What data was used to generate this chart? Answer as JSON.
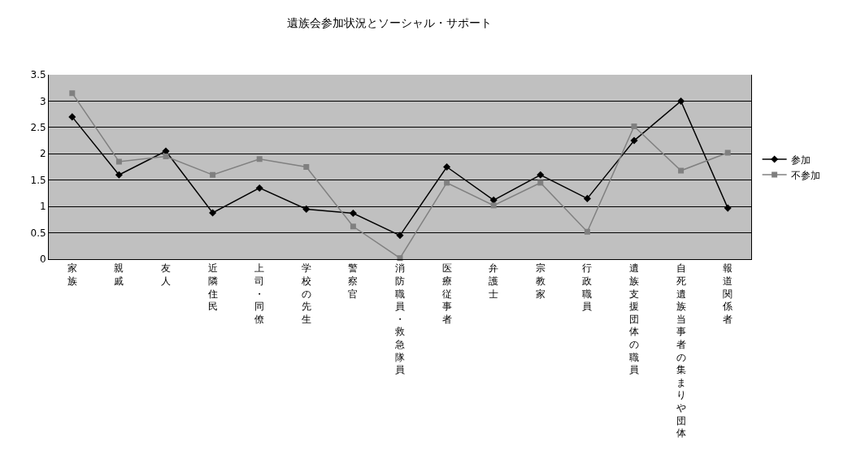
{
  "chart_data": {
    "type": "line",
    "title": "遺族会参加状況とソーシャル・サポート",
    "categories": [
      "家族",
      "親戚",
      "友人",
      "近隣住民",
      "上司・同僚",
      "学校の先生",
      "警察官",
      "消防職員・救急隊員",
      "医療従事者",
      "弁護士",
      "宗教家",
      "行政職員",
      "遺族支援団体の職員",
      "自死遺族当事者の集まりや団体",
      "報道関係者"
    ],
    "series": [
      {
        "name": "参加",
        "color": "#000000",
        "marker": "diamond",
        "values": [
          2.7,
          1.6,
          2.05,
          0.88,
          1.35,
          0.95,
          0.87,
          0.45,
          1.75,
          1.12,
          1.6,
          1.15,
          2.25,
          3.0,
          0.97
        ]
      },
      {
        "name": "不参加",
        "color": "#808080",
        "marker": "square",
        "values": [
          3.15,
          1.85,
          1.95,
          1.6,
          1.9,
          1.75,
          0.62,
          0.02,
          1.45,
          1.02,
          1.45,
          0.52,
          2.52,
          1.68,
          2.02
        ]
      }
    ],
    "ylim": [
      0,
      3.5
    ],
    "yticks": [
      0,
      0.5,
      1,
      1.5,
      2,
      2.5,
      3,
      3.5
    ],
    "grid": "y",
    "legend": "right"
  }
}
